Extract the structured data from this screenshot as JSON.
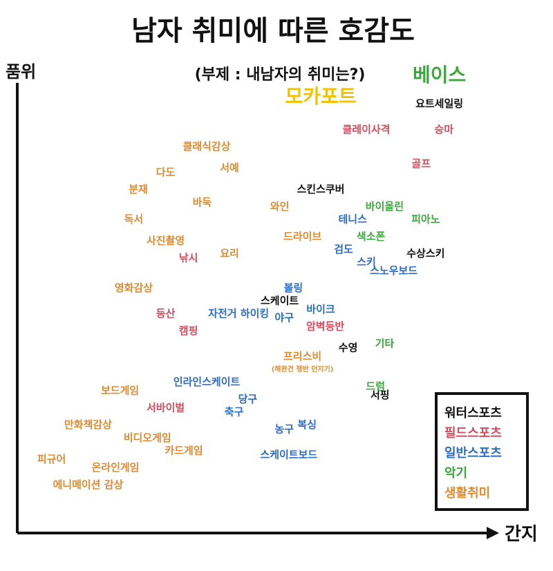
{
  "chart_data": {
    "type": "scatter",
    "title": "남자 취미에 따른 호감도",
    "subtitle": "(부제 : 내남자의 취미는?)",
    "ylabel": "품위",
    "xlabel": "간지",
    "xlim": [
      0,
      100
    ],
    "ylim": [
      0,
      100
    ],
    "grid": false,
    "legend_position": "bottom-right",
    "legend_title": "",
    "series": [
      {
        "name": "워터스포츠",
        "color": "#111111",
        "points": [
          {
            "label": "요트세일링",
            "x": 91,
            "y": 94
          },
          {
            "label": "스킨스쿠버",
            "x": 65,
            "y": 74
          },
          {
            "label": "수상스키",
            "x": 88,
            "y": 59
          },
          {
            "label": "스케이트",
            "x": 56,
            "y": 48
          },
          {
            "label": "수영",
            "x": 71,
            "y": 37
          },
          {
            "label": "서핑",
            "x": 78,
            "y": 26
          }
        ]
      },
      {
        "name": "필드스포츠",
        "color": "#d64a5a",
        "points": [
          {
            "label": "클레이사격",
            "x": 75,
            "y": 88
          },
          {
            "label": "승마",
            "x": 92,
            "y": 88
          },
          {
            "label": "골프",
            "x": 87,
            "y": 80
          },
          {
            "label": "낚시",
            "x": 36,
            "y": 58
          },
          {
            "label": "등산",
            "x": 31,
            "y": 45
          },
          {
            "label": "캠핑",
            "x": 36,
            "y": 41
          },
          {
            "label": "암벽등반",
            "x": 66,
            "y": 42
          },
          {
            "label": "서바이벌",
            "x": 31,
            "y": 23
          }
        ]
      },
      {
        "name": "일반스포츠",
        "color": "#2b6cc4",
        "points": [
          {
            "label": "테니스",
            "x": 72,
            "y": 67
          },
          {
            "label": "검도",
            "x": 70,
            "y": 60
          },
          {
            "label": "스키",
            "x": 75,
            "y": 57
          },
          {
            "label": "스노우보드",
            "x": 81,
            "y": 55
          },
          {
            "label": "볼링",
            "x": 59,
            "y": 51
          },
          {
            "label": "자전거 하이킹",
            "x": 47,
            "y": 45
          },
          {
            "label": "야구",
            "x": 57,
            "y": 44
          },
          {
            "label": "바이크",
            "x": 65,
            "y": 46
          },
          {
            "label": "인라인스케이트",
            "x": 40,
            "y": 29
          },
          {
            "label": "당구",
            "x": 49,
            "y": 25
          },
          {
            "label": "축구",
            "x": 46,
            "y": 22
          },
          {
            "label": "복싱",
            "x": 62,
            "y": 19
          },
          {
            "label": "농구",
            "x": 57,
            "y": 18
          },
          {
            "label": "스케이트보드",
            "x": 58,
            "y": 12
          }
        ]
      },
      {
        "name": "악기",
        "color": "#3aa83a",
        "points": [
          {
            "label": "베이스",
            "x": 91,
            "y": 100
          },
          {
            "label": "바이올린",
            "x": 79,
            "y": 70
          },
          {
            "label": "피아노",
            "x": 88,
            "y": 67
          },
          {
            "label": "색소폰",
            "x": 76,
            "y": 63
          },
          {
            "label": "기타",
            "x": 79,
            "y": 38
          },
          {
            "label": "드럼",
            "x": 77,
            "y": 28
          }
        ]
      },
      {
        "name": "생활취미",
        "color": "#e08a30",
        "points": [
          {
            "label": "클래식감상",
            "x": 40,
            "y": 84
          },
          {
            "label": "다도",
            "x": 31,
            "y": 78
          },
          {
            "label": "서예",
            "x": 45,
            "y": 79
          },
          {
            "label": "분재",
            "x": 25,
            "y": 74
          },
          {
            "label": "바둑",
            "x": 39,
            "y": 71
          },
          {
            "label": "와인",
            "x": 56,
            "y": 70
          },
          {
            "label": "독서",
            "x": 24,
            "y": 67
          },
          {
            "label": "사진촬영",
            "x": 31,
            "y": 62
          },
          {
            "label": "드라이브",
            "x": 61,
            "y": 63
          },
          {
            "label": "요리",
            "x": 45,
            "y": 59
          },
          {
            "label": "영화감상",
            "x": 24,
            "y": 51
          },
          {
            "label": "프리스비",
            "x": 61,
            "y": 35
          },
          {
            "label": "보드게임",
            "x": 21,
            "y": 27
          },
          {
            "label": "만화책감상",
            "x": 14,
            "y": 19
          },
          {
            "label": "비디오게임",
            "x": 27,
            "y": 16
          },
          {
            "label": "카드게임",
            "x": 35,
            "y": 13
          },
          {
            "label": "피규어",
            "x": 6,
            "y": 11
          },
          {
            "label": "온라인게임",
            "x": 20,
            "y": 9
          },
          {
            "label": "에니메이션 감상",
            "x": 14,
            "y": 5
          },
          {
            "label": "모카포트",
            "x": 65,
            "y": 95
          }
        ]
      }
    ],
    "annotations": [
      {
        "text": "(해완건 쟁반 던지기)",
        "color": "#e08a30",
        "anchor": "프리스비"
      }
    ]
  }
}
